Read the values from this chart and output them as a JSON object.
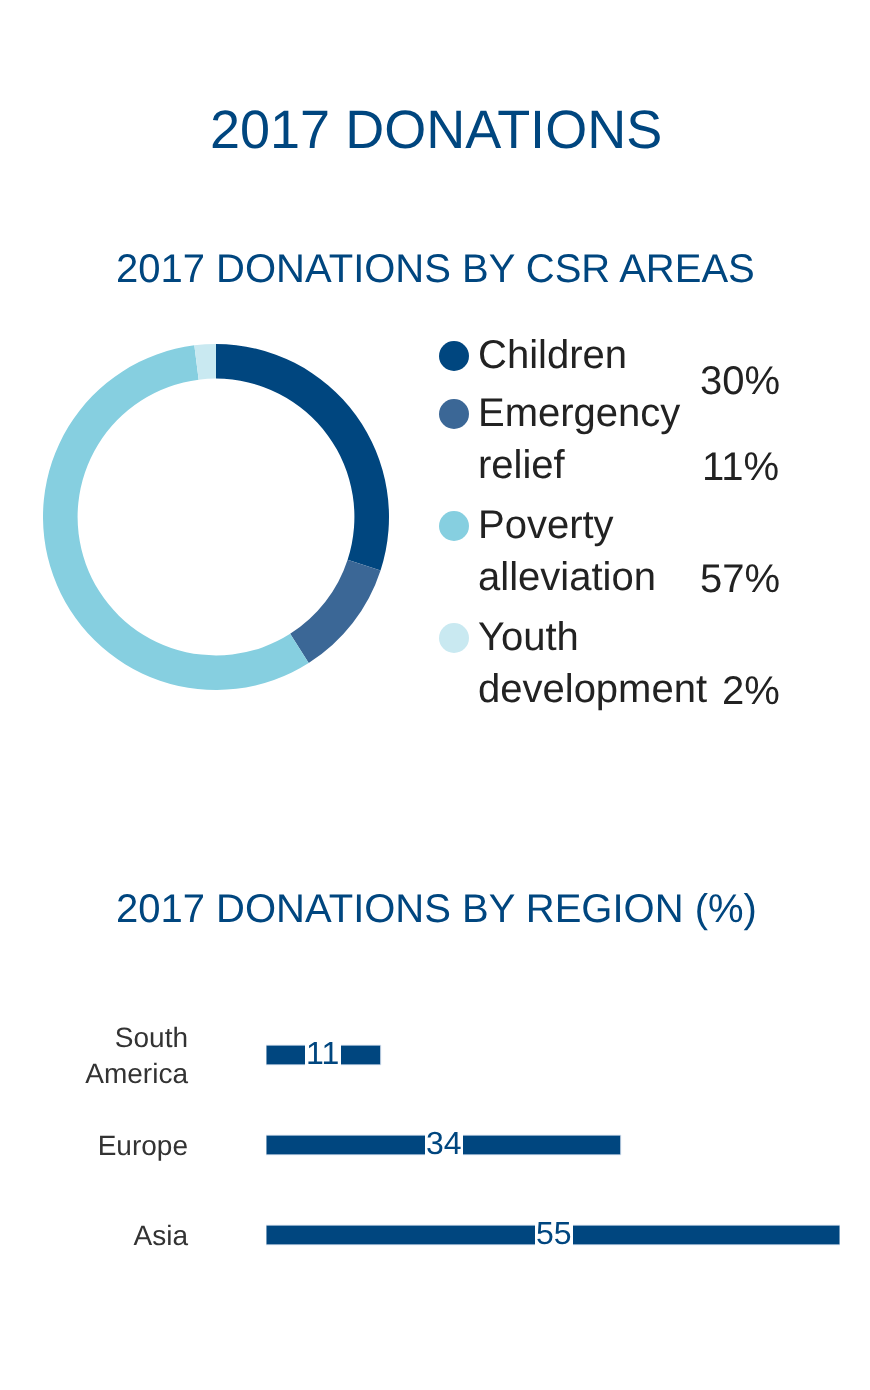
{
  "chart_data": [
    {
      "type": "donut",
      "title": "2017 DONATIONS",
      "subtitle": "2017 DONATIONS BY CSR AREAS",
      "categories": [
        "Children",
        "Emergency relief",
        "Poverty alleviation",
        "Youth development"
      ],
      "values": [
        30,
        11,
        57,
        2
      ],
      "value_labels": [
        "30%",
        "11%",
        "57%",
        "2%"
      ],
      "colors": [
        "#00467f",
        "#3b6796",
        "#86cfe0",
        "#c9e9f1"
      ],
      "legend": "right"
    },
    {
      "type": "bar",
      "orientation": "horizontal",
      "title": "2017 DONATIONS BY REGION (%)",
      "categories": [
        "South America",
        "Europe",
        "Asia"
      ],
      "values": [
        11,
        34,
        55
      ],
      "color": "#00467f",
      "data_labels": true
    }
  ]
}
